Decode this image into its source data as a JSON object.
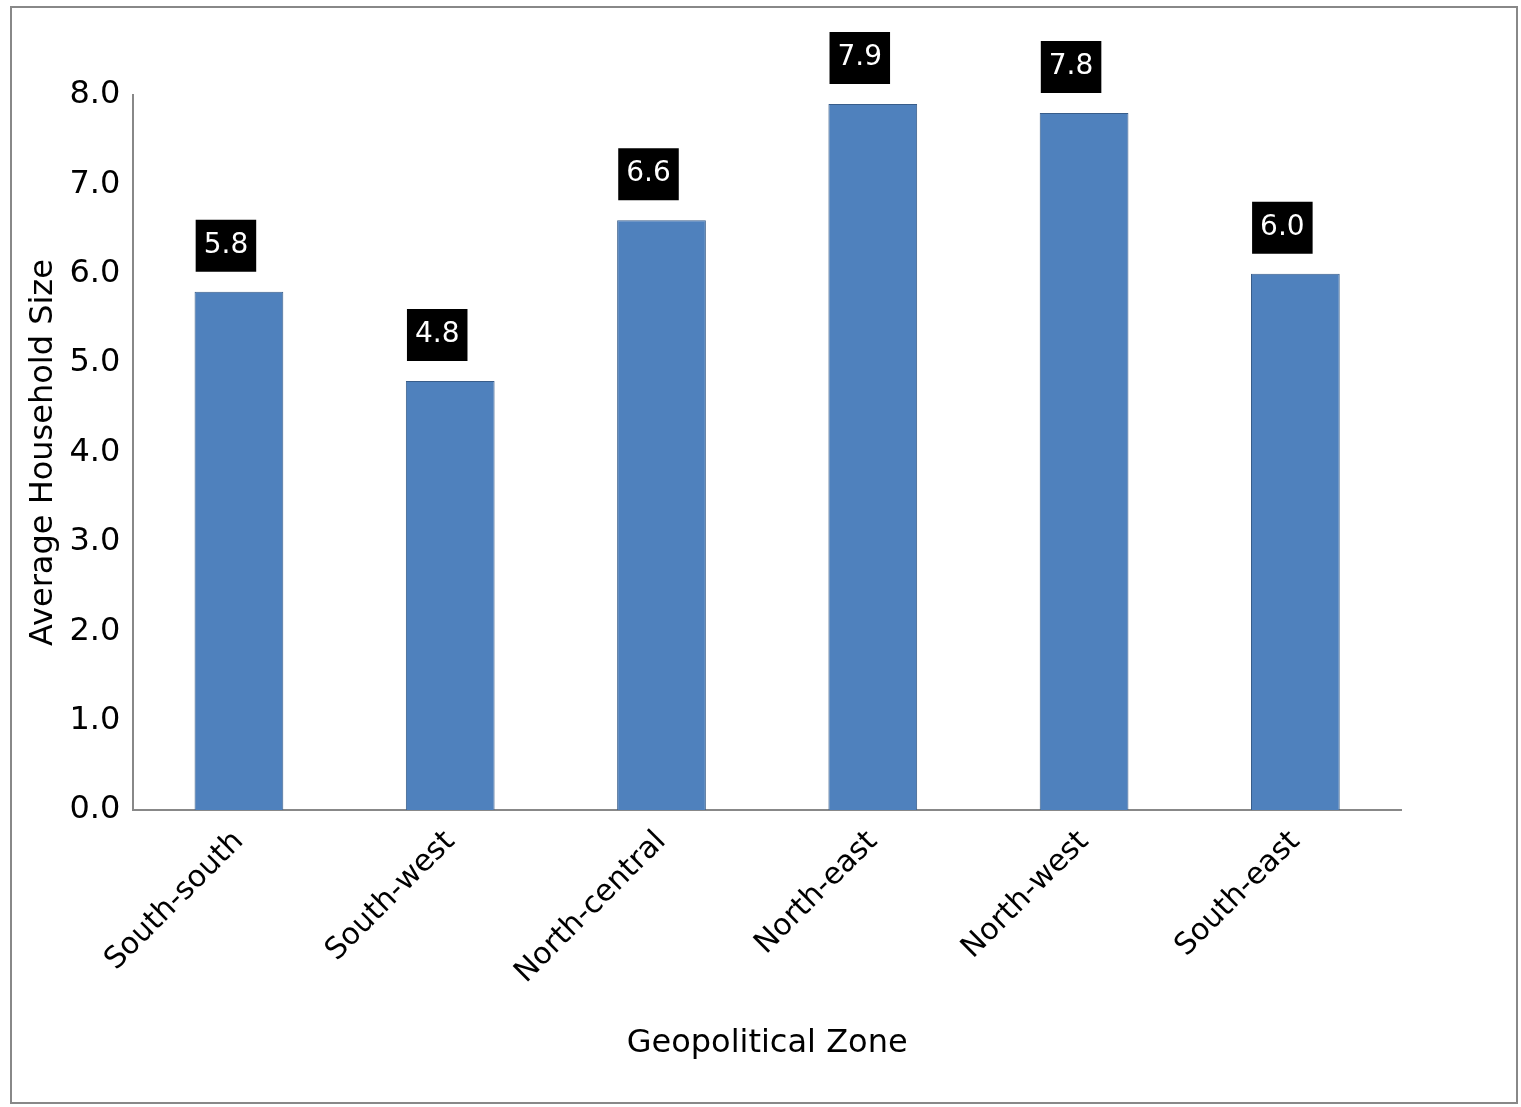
{
  "chart_data": {
    "type": "bar",
    "xlabel": "Geopolitical Zone",
    "ylabel": "Average Household Size",
    "categories": [
      "South-south",
      "South-west",
      "North-central",
      "North-east",
      "North-west",
      "South-east"
    ],
    "values": [
      5.8,
      4.8,
      6.6,
      7.9,
      7.8,
      6.0
    ],
    "color": "#4f81bd",
    "ylim": [
      0,
      8
    ],
    "yticks": [
      {
        "value": 0,
        "label": "0.0"
      },
      {
        "value": 1,
        "label": "1.0"
      },
      {
        "value": 2,
        "label": "2.0"
      },
      {
        "value": 3,
        "label": "3.0"
      },
      {
        "value": 4,
        "label": "4.0"
      },
      {
        "value": 5,
        "label": "5.0"
      },
      {
        "value": 6,
        "label": "6.0"
      },
      {
        "value": 7,
        "label": "7.0"
      },
      {
        "value": 8,
        "label": "8.0"
      }
    ],
    "value_labels": [
      "5.8",
      "4.8",
      "6.6",
      "7.9",
      "7.8",
      "6.0"
    ],
    "grid": false,
    "legend": false
  }
}
